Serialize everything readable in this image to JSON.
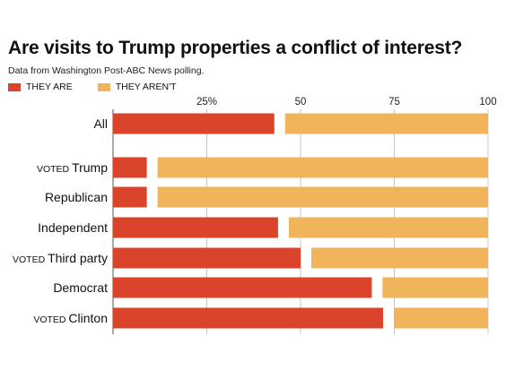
{
  "chart_data": {
    "type": "bar",
    "stacked": true,
    "orientation": "horizontal",
    "title": "Are visits to Trump properties a conflict of interest?",
    "subtitle": "Data from Washington Post-ABC News polling.",
    "xlim": [
      0,
      100
    ],
    "ticks": [
      {
        "value": 25,
        "label": "25%"
      },
      {
        "value": 50,
        "label": "50"
      },
      {
        "value": 75,
        "label": "75"
      },
      {
        "value": 100,
        "label": "100"
      }
    ],
    "grid": true,
    "legend_position": "top-left",
    "categories": [
      {
        "prefix": "",
        "label": "All"
      },
      {
        "prefix": "VOTED",
        "label": "Trump"
      },
      {
        "prefix": "",
        "label": "Republican"
      },
      {
        "prefix": "",
        "label": "Independent"
      },
      {
        "prefix": "VOTED",
        "label": "Third party"
      },
      {
        "prefix": "",
        "label": "Democrat"
      },
      {
        "prefix": "VOTED",
        "label": "Clinton"
      }
    ],
    "series": [
      {
        "name": "THEY ARE",
        "color": "#d9442b",
        "values": [
          43,
          9,
          9,
          44,
          50,
          69,
          72
        ]
      },
      {
        "name": "THEY AREN'T",
        "color": "#f2b45a",
        "values": [
          54,
          90,
          88,
          54,
          47,
          28,
          25
        ]
      }
    ]
  }
}
